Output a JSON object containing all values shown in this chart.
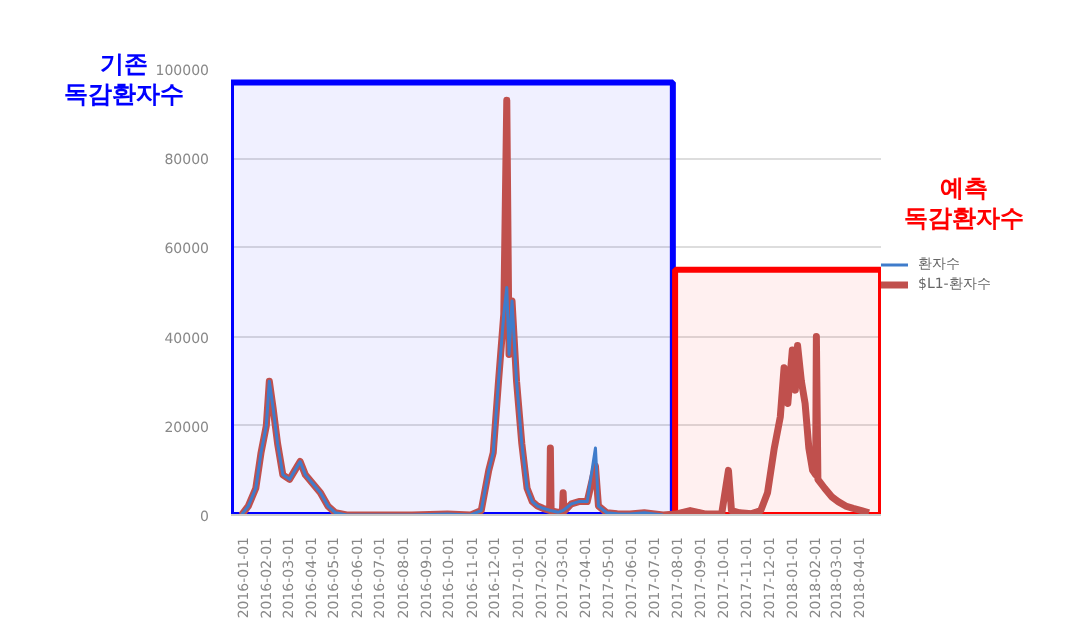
{
  "chart_data": {
    "type": "line",
    "series": [
      {
        "name": "환자수",
        "color": "#3f7ccb",
        "x": [
          "2016-01-01",
          "2016-01-10",
          "2016-01-20",
          "2016-01-27",
          "2016-02-03",
          "2016-02-07",
          "2016-02-12",
          "2016-02-18",
          "2016-02-25",
          "2016-03-05",
          "2016-03-12",
          "2016-03-19",
          "2016-03-26",
          "2016-04-05",
          "2016-04-15",
          "2016-04-25",
          "2016-05-05",
          "2016-05-20",
          "2016-08-15",
          "2016-10-01",
          "2016-11-01",
          "2016-11-15",
          "2016-11-25",
          "2016-12-01",
          "2016-12-08",
          "2016-12-15",
          "2016-12-19",
          "2016-12-22",
          "2016-12-26",
          "2017-01-01",
          "2017-01-08",
          "2017-01-15",
          "2017-01-22",
          "2017-01-29",
          "2017-02-05",
          "2017-02-15",
          "2017-02-25",
          "2017-03-04",
          "2017-03-15",
          "2017-03-25",
          "2017-04-05",
          "2017-04-16",
          "2017-04-20",
          "2017-05-01",
          "2017-05-15",
          "2017-06-01",
          "2017-06-20",
          "2017-07-15"
        ],
        "values": [
          0,
          2000,
          6000,
          14000,
          20000,
          30000,
          24000,
          16000,
          9000,
          8000,
          10000,
          12000,
          9000,
          7000,
          5000,
          2000,
          500,
          0,
          0,
          200,
          0,
          1000,
          10000,
          14000,
          30000,
          45000,
          51000,
          36000,
          48000,
          30000,
          16000,
          6000,
          3000,
          2000,
          1500,
          1000,
          600,
          1000,
          2500,
          3000,
          3000,
          15000,
          2000,
          500,
          300,
          200,
          500,
          0
        ]
      },
      {
        "name": "$L1-환자수",
        "color": "#c0504d",
        "x": [
          "2016-01-01",
          "2016-01-10",
          "2016-01-20",
          "2016-01-27",
          "2016-02-03",
          "2016-02-07",
          "2016-02-12",
          "2016-02-18",
          "2016-02-25",
          "2016-03-05",
          "2016-03-12",
          "2016-03-19",
          "2016-03-26",
          "2016-04-05",
          "2016-04-15",
          "2016-04-25",
          "2016-05-05",
          "2016-05-20",
          "2016-06-15",
          "2016-08-15",
          "2016-10-01",
          "2016-11-01",
          "2016-11-15",
          "2016-11-25",
          "2016-12-01",
          "2016-12-08",
          "2016-12-15",
          "2016-12-19",
          "2016-12-22",
          "2016-12-26",
          "2017-01-01",
          "2017-01-08",
          "2017-01-15",
          "2017-01-22",
          "2017-01-29",
          "2017-02-05",
          "2017-02-14",
          "2017-02-15",
          "2017-02-16",
          "2017-02-25",
          "2017-03-03",
          "2017-03-04",
          "2017-03-05",
          "2017-03-15",
          "2017-03-25",
          "2017-04-05",
          "2017-04-16",
          "2017-04-20",
          "2017-05-01",
          "2017-05-15",
          "2017-06-01",
          "2017-06-20",
          "2017-07-15",
          "2017-08-01",
          "2017-08-20",
          "2017-09-10",
          "2017-10-01",
          "2017-10-10",
          "2017-10-14",
          "2017-10-25",
          "2017-11-10",
          "2017-11-22",
          "2017-12-01",
          "2017-12-10",
          "2017-12-18",
          "2017-12-23",
          "2017-12-28",
          "2018-01-03",
          "2018-01-07",
          "2018-01-10",
          "2018-01-15",
          "2018-01-20",
          "2018-01-25",
          "2018-01-30",
          "2018-02-03",
          "2018-02-04",
          "2018-02-06",
          "2018-02-15",
          "2018-02-25",
          "2018-03-05",
          "2018-03-15",
          "2018-03-25",
          "2018-04-05",
          "2018-04-15"
        ],
        "values": [
          0,
          2000,
          6000,
          14000,
          20000,
          30000,
          24000,
          16000,
          9000,
          8000,
          10000,
          12000,
          9000,
          7000,
          5000,
          2000,
          500,
          0,
          0,
          0,
          200,
          0,
          1000,
          10000,
          14000,
          30000,
          45000,
          93000,
          36000,
          48000,
          30000,
          16000,
          6000,
          3000,
          2000,
          1500,
          1000,
          15000,
          1000,
          600,
          800,
          5000,
          800,
          2500,
          3000,
          3000,
          11000,
          2000,
          500,
          300,
          200,
          500,
          0,
          200,
          1000,
          200,
          300,
          10000,
          1000,
          500,
          300,
          1000,
          5000,
          15000,
          22000,
          33000,
          25000,
          37000,
          28000,
          38000,
          30000,
          25000,
          15000,
          10000,
          9000,
          40000,
          8000,
          6000,
          4000,
          3000,
          2000,
          1500,
          1000,
          500
        ]
      }
    ],
    "xlim": [
      "2015-12-18",
      "2018-05-01"
    ],
    "xticks": [
      "2016-01-01",
      "2016-02-01",
      "2016-03-01",
      "2016-04-01",
      "2016-05-01",
      "2016-06-01",
      "2016-07-01",
      "2016-08-01",
      "2016-09-01",
      "2016-10-01",
      "2016-11-01",
      "2016-12-01",
      "2017-01-01",
      "2017-02-01",
      "2017-03-01",
      "2017-04-01",
      "2017-05-01",
      "2017-06-01",
      "2017-07-01",
      "2017-08-01",
      "2017-09-01",
      "2017-10-01",
      "2017-11-01",
      "2017-12-01",
      "2018-01-01",
      "2018-02-01",
      "2018-03-01",
      "2018-04-01"
    ],
    "ylim": [
      0,
      100000
    ],
    "yticks": [
      0,
      20000,
      40000,
      60000,
      80000,
      100000
    ],
    "grid": "y",
    "legend": "right",
    "line_style": "solid",
    "bands": [
      {
        "axis": "x",
        "from": "2015-12-18",
        "to": "2017-07-28",
        "label": "기존\n독감환자수",
        "color": "#0000ff"
      },
      {
        "axis": "x",
        "from": "2017-07-31",
        "to": "2018-05-01",
        "label": "예측\n독감환자수",
        "color": "#ff0000"
      }
    ]
  }
}
